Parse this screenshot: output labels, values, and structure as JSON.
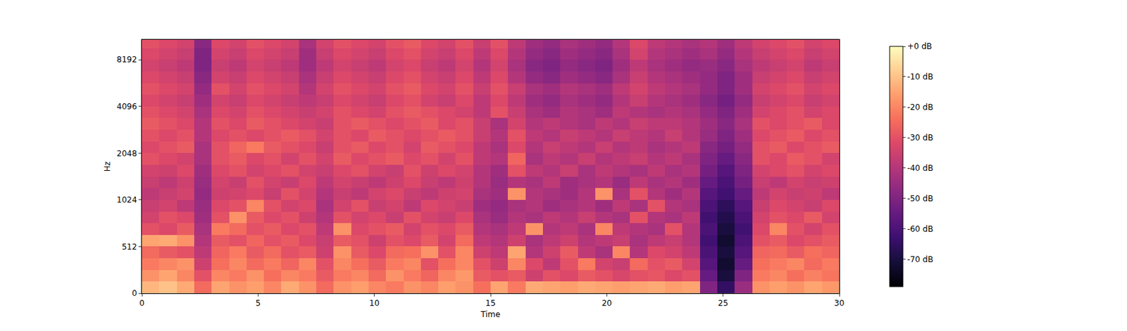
{
  "chart_data": {
    "type": "heatmap",
    "x_label": "Time",
    "y_label": "Hz",
    "color": "magma",
    "x": [
      0.375,
      1.125,
      1.875,
      2.625,
      3.375,
      4.125,
      4.875,
      5.625,
      6.375,
      7.125,
      7.875,
      8.625,
      9.375,
      10.125,
      10.875,
      11.625,
      12.375,
      13.125,
      13.875,
      14.625,
      15.375,
      16.125,
      16.875,
      17.625,
      18.375,
      19.125,
      19.875,
      20.625,
      21.375,
      22.125,
      22.875,
      23.625,
      24.375,
      25.125,
      25.875,
      26.625,
      27.375,
      28.125,
      28.875,
      29.625
    ],
    "y": [
      64,
      192,
      320,
      448,
      576,
      704,
      832,
      960,
      1117,
      1328,
      1579,
      1878,
      2233,
      2656,
      3158,
      3756,
      4466,
      5311,
      6316,
      7511,
      8932,
      10622
    ],
    "cells": [
      [
        -12,
        -10,
        -14,
        -25,
        -15,
        -18,
        -16,
        -20,
        -14,
        -18,
        -25,
        -18,
        -16,
        -20,
        -22,
        -18,
        -20,
        -16,
        -18,
        -24,
        -15,
        -22,
        -14,
        -15,
        -16,
        -14,
        -15,
        -16,
        -15,
        -14,
        -16,
        -15,
        -50,
        -65,
        -45,
        -18,
        -16,
        -18,
        -15,
        -17
      ],
      [
        -18,
        -15,
        -20,
        -30,
        -20,
        -22,
        -18,
        -24,
        -20,
        -22,
        -28,
        -22,
        -20,
        -25,
        -18,
        -22,
        -26,
        -20,
        -17,
        -28,
        -30,
        -28,
        -35,
        -30,
        -32,
        -28,
        -30,
        -33,
        -30,
        -29,
        -32,
        -30,
        -55,
        -70,
        -50,
        -22,
        -20,
        -24,
        -21,
        -23
      ],
      [
        -22,
        -20,
        -18,
        -35,
        -24,
        -20,
        -25,
        -22,
        -26,
        -20,
        -30,
        -20,
        -24,
        -28,
        -22,
        -20,
        -30,
        -24,
        -20,
        -30,
        -35,
        -20,
        -32,
        -38,
        -30,
        -22,
        -34,
        -36,
        -25,
        -30,
        -28,
        -34,
        -58,
        -72,
        -55,
        -24,
        -22,
        -20,
        -25,
        -22
      ],
      [
        -25,
        -28,
        -30,
        -38,
        -26,
        -22,
        -28,
        -25,
        -30,
        -28,
        -35,
        -18,
        -28,
        -32,
        -25,
        -24,
        -18,
        -30,
        -20,
        -35,
        -38,
        -15,
        -40,
        -35,
        -28,
        -38,
        -42,
        -20,
        -40,
        -32,
        -34,
        -38,
        -60,
        -70,
        -58,
        -26,
        -25,
        -28,
        -24,
        -26
      ],
      [
        -15,
        -14,
        -18,
        -40,
        -28,
        -30,
        -26,
        -30,
        -28,
        -32,
        -36,
        -28,
        -30,
        -35,
        -30,
        -32,
        -28,
        -34,
        -25,
        -38,
        -40,
        -35,
        -42,
        -38,
        -35,
        -40,
        -38,
        -36,
        -42,
        -38,
        -36,
        -40,
        -62,
        -72,
        -60,
        -30,
        -28,
        -32,
        -30,
        -28
      ],
      [
        -30,
        -32,
        -28,
        -42,
        -22,
        -25,
        -30,
        -28,
        -32,
        -30,
        -38,
        -18,
        -32,
        -30,
        -28,
        -34,
        -30,
        -32,
        -28,
        -40,
        -42,
        -38,
        -18,
        -40,
        -38,
        -42,
        -20,
        -38,
        -40,
        -42,
        -30,
        -40,
        -60,
        -70,
        -62,
        -32,
        -20,
        -30,
        -34,
        -30
      ],
      [
        -34,
        -30,
        -32,
        -44,
        -30,
        -18,
        -28,
        -32,
        -30,
        -35,
        -40,
        -30,
        -34,
        -32,
        -36,
        -30,
        -34,
        -36,
        -32,
        -42,
        -45,
        -40,
        -42,
        -38,
        -40,
        -36,
        -40,
        -42,
        -30,
        -40,
        -42,
        -38,
        -62,
        -68,
        -60,
        -34,
        -30,
        -32,
        -28,
        -34
      ],
      [
        -36,
        -34,
        -38,
        -45,
        -32,
        -30,
        -20,
        -30,
        -34,
        -32,
        -42,
        -34,
        -30,
        -36,
        -34,
        -38,
        -32,
        -34,
        -36,
        -44,
        -46,
        -42,
        -40,
        -44,
        -42,
        -40,
        -44,
        -38,
        -42,
        -30,
        -40,
        -42,
        -60,
        -66,
        -58,
        -36,
        -32,
        -34,
        -36,
        -32
      ],
      [
        -38,
        -36,
        -34,
        -46,
        -35,
        -34,
        -32,
        -36,
        -30,
        -34,
        -40,
        -36,
        -38,
        -34,
        -32,
        -36,
        -38,
        -35,
        -34,
        -42,
        -44,
        -18,
        -40,
        -42,
        -44,
        -40,
        -18,
        -42,
        -30,
        -40,
        -44,
        -40,
        -58,
        -62,
        -55,
        -38,
        -34,
        -36,
        -35,
        -38
      ],
      [
        -36,
        -38,
        -35,
        -45,
        -34,
        -36,
        -30,
        -34,
        -36,
        -32,
        -38,
        -34,
        -36,
        -38,
        -35,
        -32,
        -36,
        -38,
        -35,
        -40,
        -45,
        -40,
        -42,
        -38,
        -44,
        -42,
        -40,
        -45,
        -38,
        -42,
        -40,
        -44,
        -55,
        -60,
        -52,
        -36,
        -38,
        -34,
        -36,
        -35
      ],
      [
        -34,
        -35,
        -32,
        -44,
        -32,
        -30,
        -34,
        -32,
        -30,
        -34,
        -36,
        -32,
        -30,
        -34,
        -36,
        -30,
        -35,
        -32,
        -34,
        -40,
        -44,
        -30,
        -38,
        -40,
        -36,
        -42,
        -38,
        -40,
        -42,
        -38,
        -42,
        -40,
        -52,
        -58,
        -50,
        -34,
        -32,
        -30,
        -34,
        -32
      ],
      [
        -30,
        -32,
        -34,
        -42,
        -30,
        -28,
        -32,
        -30,
        -34,
        -30,
        -34,
        -28,
        -32,
        -30,
        -28,
        -32,
        -30,
        -34,
        -30,
        -38,
        -40,
        -26,
        -42,
        -38,
        -40,
        -36,
        -40,
        -38,
        -36,
        -40,
        -38,
        -42,
        -50,
        -55,
        -48,
        -30,
        -32,
        -28,
        -30,
        -34
      ],
      [
        -32,
        -30,
        -28,
        -42,
        -30,
        -26,
        -22,
        -28,
        -30,
        -32,
        -36,
        -30,
        -28,
        -32,
        -30,
        -34,
        -28,
        -30,
        -32,
        -38,
        -42,
        -32,
        -40,
        -36,
        -38,
        -40,
        -36,
        -40,
        -38,
        -42,
        -40,
        -38,
        -48,
        -52,
        -46,
        -30,
        -28,
        -32,
        -30,
        -28
      ],
      [
        -30,
        -32,
        -30,
        -40,
        -32,
        -30,
        -32,
        -30,
        -28,
        -30,
        -34,
        -30,
        -32,
        -28,
        -30,
        -32,
        -30,
        -28,
        -30,
        -36,
        -40,
        -30,
        -38,
        -40,
        -36,
        -38,
        -40,
        -36,
        -38,
        -40,
        -36,
        -40,
        -45,
        -50,
        -44,
        -32,
        -30,
        -28,
        -32,
        -30
      ],
      [
        -28,
        -30,
        -32,
        -40,
        -30,
        -32,
        -28,
        -30,
        -32,
        -34,
        -36,
        -30,
        -28,
        -30,
        -32,
        -30,
        -28,
        -32,
        -30,
        -36,
        -42,
        -34,
        -40,
        -38,
        -40,
        -42,
        -38,
        -40,
        -36,
        -38,
        -38,
        -40,
        -44,
        -48,
        -42,
        -30,
        -32,
        -30,
        -28,
        -32
      ],
      [
        -30,
        -32,
        -34,
        -42,
        -32,
        -34,
        -30,
        -32,
        -34,
        -36,
        -34,
        -30,
        -32,
        -34,
        -30,
        -28,
        -30,
        -32,
        -34,
        -38,
        -30,
        -36,
        -42,
        -44,
        -40,
        -42,
        -44,
        -38,
        -40,
        -42,
        -40,
        -42,
        -46,
        -50,
        -44,
        -34,
        -32,
        -30,
        -34,
        -32
      ],
      [
        -32,
        -34,
        -36,
        -44,
        -34,
        -36,
        -32,
        -34,
        -36,
        -38,
        -36,
        -32,
        -34,
        -36,
        -32,
        -30,
        -34,
        -36,
        -32,
        -38,
        -32,
        -38,
        -44,
        -46,
        -42,
        -44,
        -46,
        -40,
        -36,
        -40,
        -42,
        -44,
        -48,
        -52,
        -46,
        -36,
        -34,
        -32,
        -36,
        -34
      ],
      [
        -30,
        -32,
        -34,
        -46,
        -30,
        -34,
        -30,
        -32,
        -34,
        -40,
        -34,
        -30,
        -32,
        -34,
        -30,
        -28,
        -32,
        -34,
        -30,
        -36,
        -30,
        -36,
        -42,
        -44,
        -40,
        -42,
        -44,
        -38,
        -34,
        -38,
        -40,
        -42,
        -46,
        -50,
        -44,
        -34,
        -32,
        -30,
        -34,
        -32
      ],
      [
        -32,
        -34,
        -36,
        -48,
        -34,
        -36,
        -32,
        -34,
        -36,
        -42,
        -36,
        -32,
        -34,
        -36,
        -32,
        -30,
        -34,
        -36,
        -32,
        -38,
        -32,
        -40,
        -46,
        -48,
        -44,
        -46,
        -48,
        -42,
        -36,
        -40,
        -42,
        -44,
        -46,
        -50,
        -44,
        -36,
        -34,
        -32,
        -36,
        -34
      ],
      [
        -34,
        -36,
        -38,
        -50,
        -36,
        -38,
        -34,
        -36,
        -38,
        -44,
        -38,
        -34,
        -36,
        -38,
        -34,
        -32,
        -36,
        -38,
        -34,
        -40,
        -34,
        -42,
        -48,
        -50,
        -46,
        -48,
        -50,
        -44,
        -38,
        -42,
        -44,
        -46,
        -45,
        -48,
        -42,
        -38,
        -36,
        -34,
        -38,
        -36
      ],
      [
        -32,
        -34,
        -36,
        -50,
        -34,
        -36,
        -32,
        -34,
        -36,
        -44,
        -36,
        -32,
        -34,
        -36,
        -32,
        -30,
        -34,
        -36,
        -32,
        -38,
        -32,
        -40,
        -46,
        -48,
        -44,
        -46,
        -48,
        -42,
        -34,
        -40,
        -42,
        -44,
        -42,
        -46,
        -40,
        -36,
        -34,
        -32,
        -36,
        -34
      ],
      [
        -30,
        -32,
        -34,
        -48,
        -32,
        -34,
        -30,
        -32,
        -34,
        -42,
        -34,
        -30,
        -32,
        -34,
        -30,
        -28,
        -32,
        -34,
        -30,
        -36,
        -30,
        -38,
        -44,
        -46,
        -42,
        -44,
        -46,
        -40,
        -32,
        -38,
        -40,
        -42,
        -40,
        -44,
        -38,
        -34,
        -32,
        -30,
        -34,
        -32
      ]
    ],
    "xlim": [
      0,
      30
    ],
    "xticks": [
      0,
      5,
      10,
      15,
      20,
      25,
      30
    ],
    "ylim": [
      0,
      11025
    ],
    "yticks": [
      0,
      512,
      1024,
      2048,
      4096,
      8192
    ],
    "color_range": [
      -79,
      0
    ],
    "color_ticks": [
      {
        "value": 0,
        "label": "+0 dB"
      },
      {
        "value": -10,
        "label": "-10 dB"
      },
      {
        "value": -20,
        "label": "-20 dB"
      },
      {
        "value": -30,
        "label": "-30 dB"
      },
      {
        "value": -40,
        "label": "-40 dB"
      },
      {
        "value": -50,
        "label": "-50 dB"
      },
      {
        "value": -60,
        "label": "-60 dB"
      },
      {
        "value": -70,
        "label": "-70 dB"
      }
    ]
  }
}
